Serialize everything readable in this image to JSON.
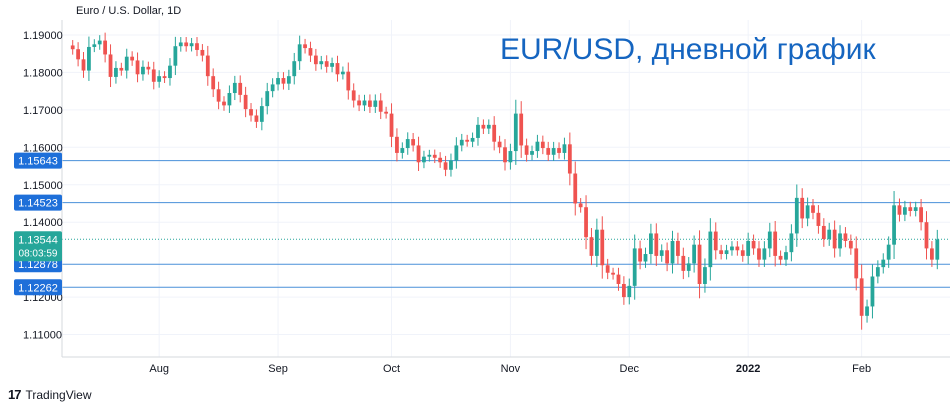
{
  "header": {
    "instrument": "Euro / U.S. Dollar, 1D"
  },
  "overlay_title": "EUR/USD, дневной график",
  "footer": {
    "brand_mark": "17",
    "brand": "TradingView"
  },
  "colors": {
    "up": "#26a69a",
    "down": "#ef5350",
    "level_line": "#4a90d9",
    "level_badge": "#1e6fd9",
    "price_badge": "#26a69a"
  },
  "chart_data": {
    "type": "candlestick",
    "title": "Euro / U.S. Dollar, 1D",
    "ylim": [
      1.104,
      1.194
    ],
    "y_ticks": [
      "1.19000",
      "1.18000",
      "1.17000",
      "1.16000",
      "1.15000",
      "1.14000",
      "1.12000",
      "1.11000"
    ],
    "x_ticks": [
      {
        "label": "Aug",
        "index": 16
      },
      {
        "label": "Sep",
        "index": 38
      },
      {
        "label": "Oct",
        "index": 59
      },
      {
        "label": "Nov",
        "index": 81
      },
      {
        "label": "Dec",
        "index": 103
      },
      {
        "label": "2022",
        "index": 125
      },
      {
        "label": "Feb",
        "index": 146
      }
    ],
    "levels": [
      {
        "label": "1.15643",
        "value": 1.15643
      },
      {
        "label": "1.14523",
        "value": 1.14523
      },
      {
        "label": "1.12878",
        "value": 1.12878
      },
      {
        "label": "1.12262",
        "value": 1.12262
      }
    ],
    "current_price": {
      "label": "1.13544",
      "value": 1.13544,
      "countdown": "08:03:59"
    },
    "closes": [
      1.1862,
      1.1835,
      1.1805,
      1.1868,
      1.1875,
      1.1885,
      1.1848,
      1.1788,
      1.1812,
      1.1805,
      1.1842,
      1.1832,
      1.1795,
      1.1815,
      1.1808,
      1.1775,
      1.179,
      1.1785,
      1.1818,
      1.187,
      1.188,
      1.187,
      1.1878,
      1.186,
      1.1845,
      1.179,
      1.1755,
      1.1722,
      1.1712,
      1.1745,
      1.1772,
      1.174,
      1.1702,
      1.1685,
      1.1668,
      1.171,
      1.175,
      1.1768,
      1.1785,
      1.177,
      1.179,
      1.183,
      1.1875,
      1.1865,
      1.1845,
      1.1822,
      1.183,
      1.1815,
      1.1825,
      1.1795,
      1.1802,
      1.1752,
      1.1725,
      1.1712,
      1.1725,
      1.1708,
      1.1725,
      1.1695,
      1.169,
      1.1628,
      1.1585,
      1.1598,
      1.1622,
      1.1605,
      1.156,
      1.1575,
      1.158,
      1.1572,
      1.156,
      1.154,
      1.1565,
      1.1605,
      1.162,
      1.1615,
      1.1625,
      1.166,
      1.165,
      1.166,
      1.1615,
      1.16,
      1.156,
      1.159,
      1.169,
      1.1605,
      1.158,
      1.159,
      1.1615,
      1.1598,
      1.158,
      1.1598,
      1.1585,
      1.1608,
      1.153,
      1.145,
      1.144,
      1.136,
      1.131,
      1.138,
      1.1285,
      1.1265,
      1.126,
      1.1235,
      1.12,
      1.123,
      1.133,
      1.1295,
      1.1315,
      1.137,
      1.131,
      1.1325,
      1.129,
      1.135,
      1.131,
      1.127,
      1.129,
      1.134,
      1.1235,
      1.128,
      1.1375,
      1.1325,
      1.1315,
      1.1325,
      1.1335,
      1.1325,
      1.131,
      1.135,
      1.133,
      1.13,
      1.133,
      1.1375,
      1.131,
      1.13,
      1.132,
      1.137,
      1.1465,
      1.141,
      1.1445,
      1.1425,
      1.139,
      1.1355,
      1.138,
      1.133,
      1.137,
      1.135,
      1.133,
      1.125,
      1.115,
      1.1175,
      1.1255,
      1.128,
      1.13,
      1.134,
      1.1445,
      1.142,
      1.144,
      1.143,
      1.144,
      1.14,
      1.133,
      1.13,
      1.1354
    ]
  }
}
